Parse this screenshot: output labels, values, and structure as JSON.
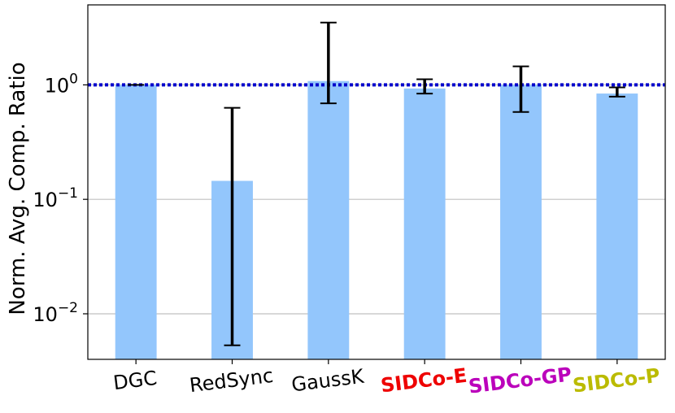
{
  "chart_data": {
    "type": "bar",
    "ylabel": "Norm. Avg. Comp. Ratio",
    "yscale": "log",
    "ylim": [
      0.004,
      5.0
    ],
    "yticks": [
      {
        "value": 0.01,
        "base": "10",
        "exp": "−2"
      },
      {
        "value": 0.1,
        "base": "10",
        "exp": "−1"
      },
      {
        "value": 1,
        "base": "10",
        "exp": "0"
      }
    ],
    "grid": "horizontal",
    "reference_line": {
      "value": 1.0,
      "style": "dotted",
      "color": "#0000cc"
    },
    "bar_color": "#93c6fc",
    "categories": [
      "DGC",
      "RedSync",
      "GaussK",
      "SIDCo-E",
      "SIDCo-GP",
      "SIDCo-P"
    ],
    "category_colors": [
      "#000000",
      "#000000",
      "#000000",
      "#ee0000",
      "#bb00bb",
      "#bbbb00"
    ],
    "category_bold": [
      false,
      false,
      false,
      true,
      true,
      true
    ],
    "values": [
      1.0,
      0.145,
      1.08,
      0.93,
      1.0,
      0.84
    ],
    "error_low": [
      1.0,
      0.0053,
      0.69,
      0.84,
      0.58,
      0.79
    ],
    "error_high": [
      1.0,
      0.63,
      3.5,
      1.12,
      1.45,
      0.95
    ]
  }
}
